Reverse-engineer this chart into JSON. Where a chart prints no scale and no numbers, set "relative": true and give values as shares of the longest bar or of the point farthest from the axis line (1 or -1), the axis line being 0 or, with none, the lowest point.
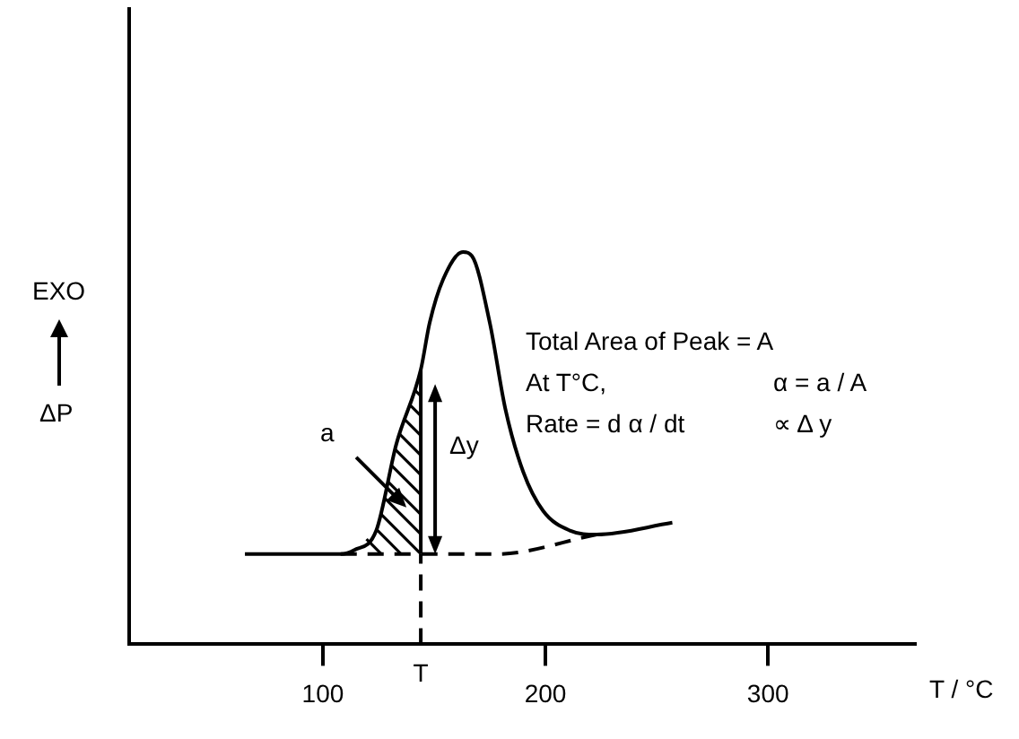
{
  "chart_data": {
    "type": "line",
    "xlabel": "T / °C",
    "ylabel": "EXO",
    "relative": true,
    "xlim": [
      13,
      366
    ],
    "xticks": [
      100,
      200,
      300
    ],
    "tick_labels": "x",
    "grid": false,
    "legend": false,
    "marker": "none",
    "series": [
      {
        "color": "#000000",
        "x": [
          65,
          108,
          114,
          124,
          133,
          144,
          148,
          154,
          163,
          167,
          175,
          182,
          190,
          199,
          211,
          223,
          257
        ],
        "values": [
          0.23,
          0.23,
          0.24,
          0.29,
          0.51,
          0.7,
          0.82,
          0.93,
          1,
          0.99,
          0.82,
          0.6,
          0.44,
          0.34,
          0.29,
          0.28,
          0.31
        ]
      },
      {
        "color": "#000000",
        "line_style": "dashed",
        "x": [
          108,
          144,
          178,
          223
        ],
        "values": [
          0.23,
          0.23,
          0.23,
          0.28
        ]
      }
    ],
    "ref_lines": [
      {
        "axis": "x",
        "value": 144,
        "label": "T",
        "line_style": "dashed",
        "color": "#000000"
      }
    ],
    "annotations": [
      "ΔP",
      "Total Area of Peak = A",
      "At T°C,",
      "α = a / A",
      "Rate = d α / dt",
      "∝ Δ y",
      "a",
      "Δy"
    ]
  }
}
